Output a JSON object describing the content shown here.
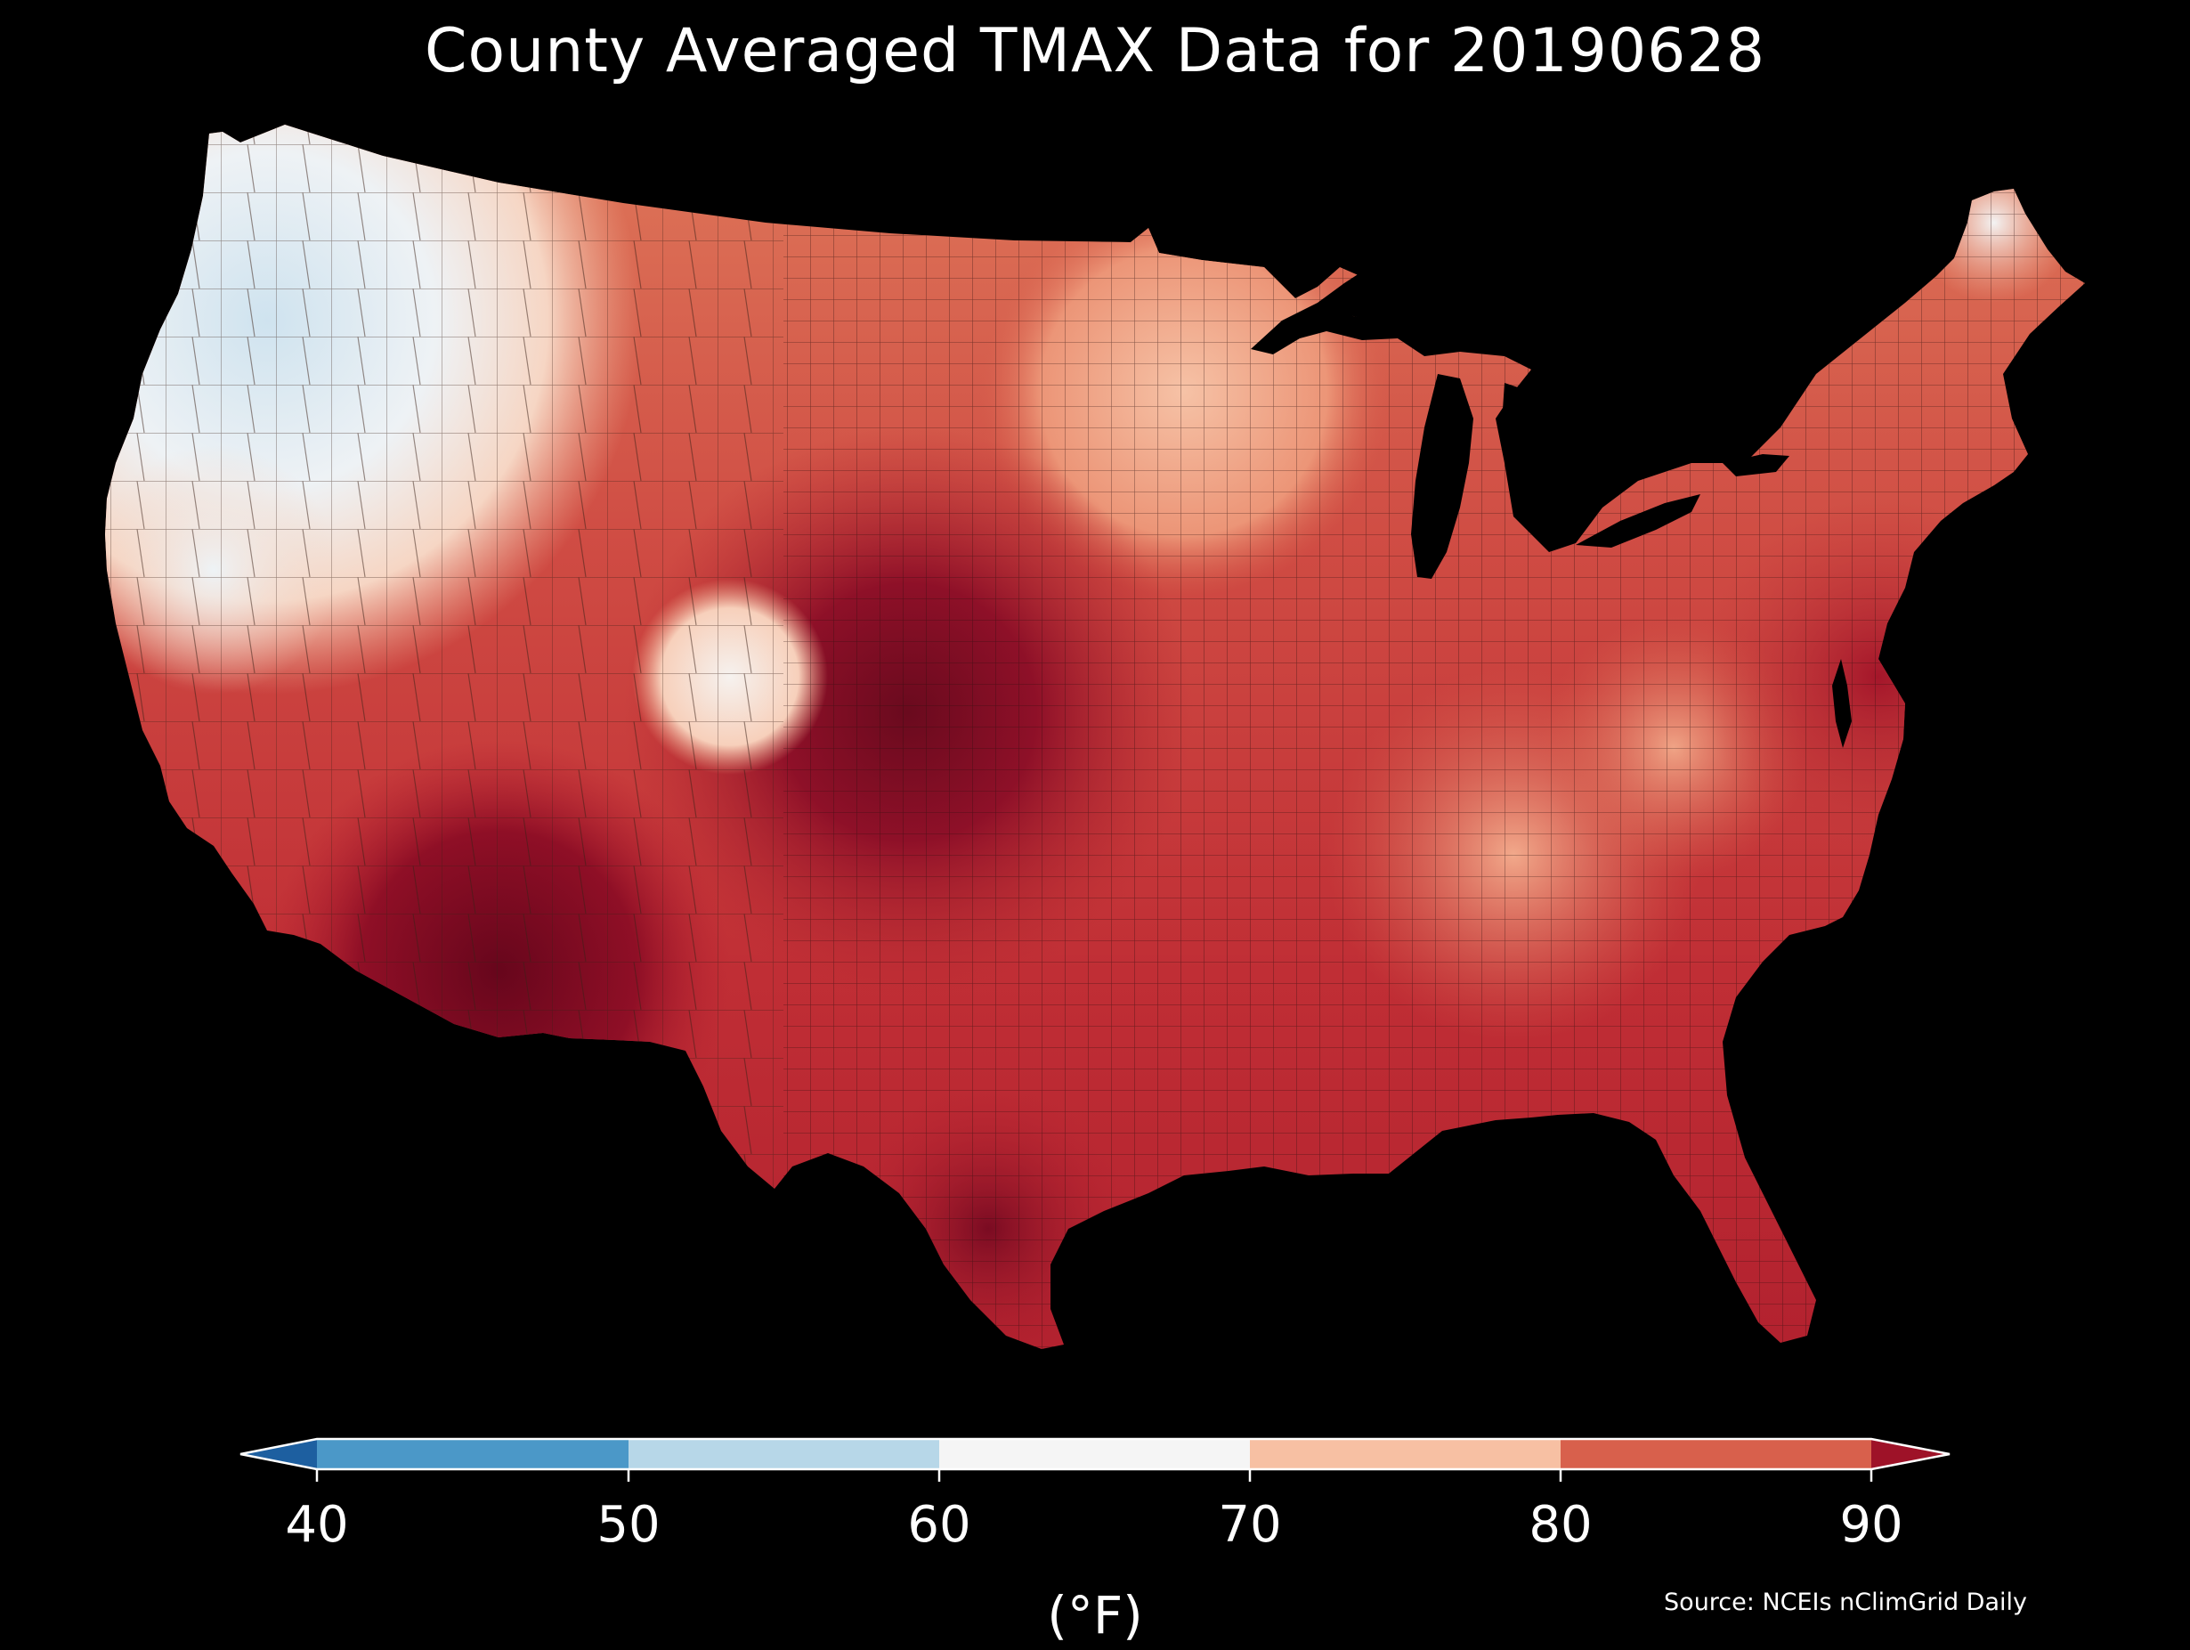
{
  "title": "County Averaged TMAX Data for 20190628",
  "source": "Source: NCEIs nClimGrid Daily",
  "colorbar": {
    "unit_label": "(°F)",
    "ticks": [
      "40",
      "50",
      "60",
      "70",
      "80",
      "90"
    ],
    "bins": [
      {
        "range": "<40",
        "color": "#1d5fa0"
      },
      {
        "range": "40-50",
        "color": "#4b98c8"
      },
      {
        "range": "50-60",
        "color": "#b7d7e8"
      },
      {
        "range": "60-70",
        "color": "#f5f5f5"
      },
      {
        "range": "70-80",
        "color": "#f7c0a3"
      },
      {
        "range": "80-90",
        "color": "#d8604c"
      },
      {
        "range": ">90",
        "color": "#9e1228"
      }
    ],
    "extend": "both"
  },
  "map": {
    "region": "Contiguous United States",
    "variable": "TMAX",
    "units": "°F",
    "background_color": "#000000",
    "water_color": "#000000"
  },
  "colors": {
    "text": "#ffffff",
    "background": "#000000",
    "county_border": "#3a1a14"
  }
}
